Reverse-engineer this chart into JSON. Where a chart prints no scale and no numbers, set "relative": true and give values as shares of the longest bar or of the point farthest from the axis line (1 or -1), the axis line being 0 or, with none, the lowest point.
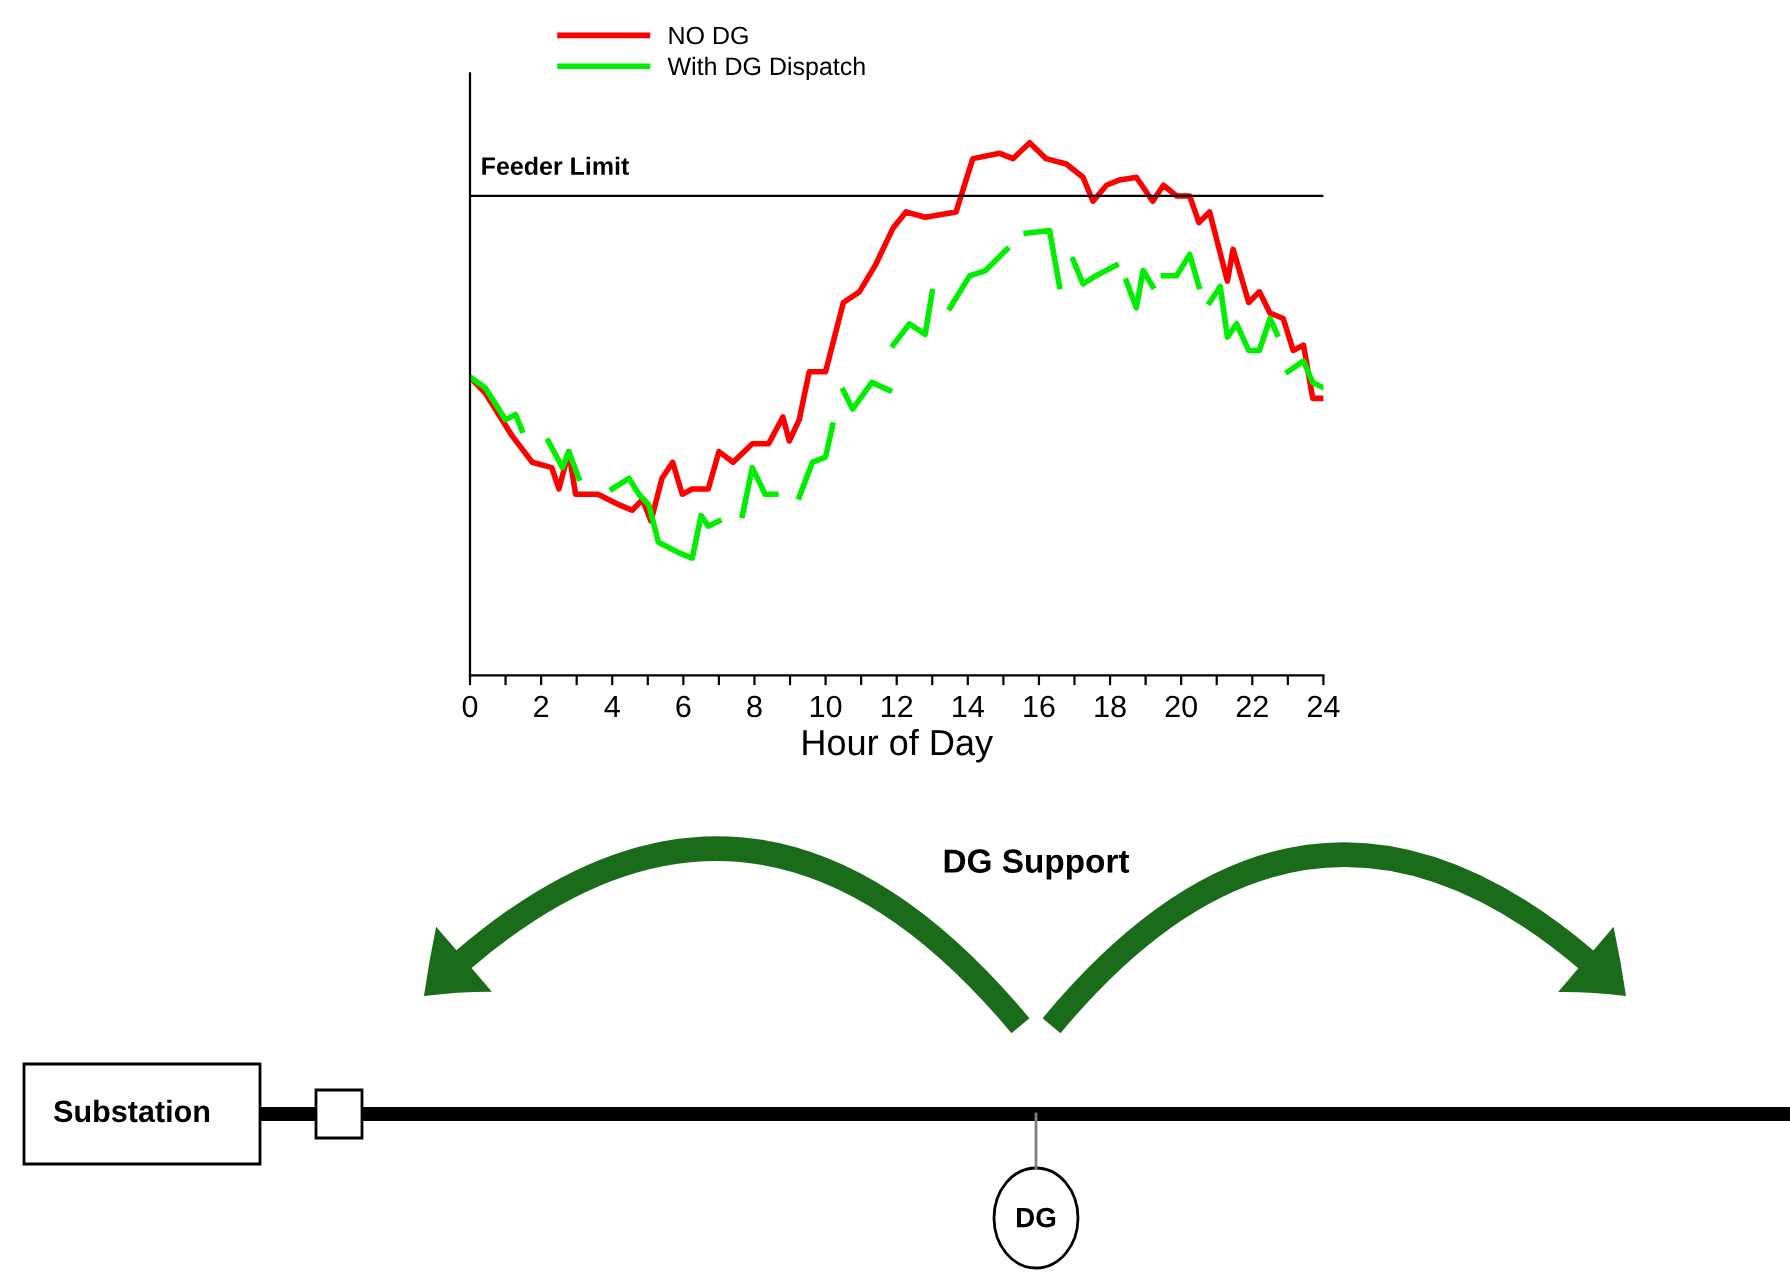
{
  "chart_data": {
    "type": "line",
    "relative": true,
    "xlabel": "Hour of Day",
    "xlim": [
      0,
      24
    ],
    "xticks": [
      0,
      {
        "value": 1,
        "label": null
      },
      2,
      {
        "value": 3,
        "label": null
      },
      4,
      {
        "value": 5,
        "label": null
      },
      6,
      {
        "value": 7,
        "label": null
      },
      8,
      {
        "value": 9,
        "label": null
      },
      10,
      {
        "value": 11,
        "label": null
      },
      12,
      {
        "value": 13,
        "label": null
      },
      14,
      {
        "value": 15,
        "label": null
      },
      16,
      {
        "value": 17,
        "label": null
      },
      18,
      {
        "value": 19,
        "label": null
      },
      20,
      {
        "value": 21,
        "label": null
      },
      22,
      {
        "value": 23,
        "label": null
      },
      24
    ],
    "tick_labels": "x",
    "grid": false,
    "legend": "top left",
    "marker": "none",
    "line_style": "solid",
    "series": [
      {
        "name": "NO DG",
        "color": "#ff0000",
        "x": [
          0,
          0.43,
          1.18,
          1.75,
          2.3,
          2.5,
          2.78,
          2.97,
          3.6,
          4.2,
          4.56,
          4.85,
          5.09,
          5.4,
          5.7,
          5.97,
          6.25,
          6.7,
          7.0,
          7.4,
          7.94,
          8.4,
          8.8,
          8.98,
          9.26,
          9.54,
          10.0,
          10.5,
          10.95,
          11.4,
          11.9,
          12.26,
          12.8,
          13.67,
          14.14,
          14.9,
          15.27,
          15.74,
          16.2,
          16.77,
          17.24,
          17.52,
          17.9,
          18.27,
          18.74,
          19.2,
          19.5,
          19.87,
          20.24,
          20.5,
          20.8,
          21.3,
          21.46,
          21.9,
          22.2,
          22.5,
          22.87,
          23.15,
          23.44,
          23.7,
          24
        ],
        "values": [
          0.56,
          0.53,
          0.45,
          0.4,
          0.39,
          0.35,
          0.42,
          0.34,
          0.34,
          0.32,
          0.31,
          0.33,
          0.29,
          0.37,
          0.4,
          0.34,
          0.35,
          0.35,
          0.42,
          0.4,
          0.435,
          0.435,
          0.485,
          0.44,
          0.48,
          0.57,
          0.57,
          0.7,
          0.72,
          0.77,
          0.84,
          0.87,
          0.86,
          0.87,
          0.97,
          0.98,
          0.97,
          1.0,
          0.97,
          0.96,
          0.935,
          0.89,
          0.92,
          0.93,
          0.935,
          0.89,
          0.92,
          0.9,
          0.9,
          0.85,
          0.87,
          0.74,
          0.8,
          0.7,
          0.72,
          0.68,
          0.67,
          0.61,
          0.62,
          0.52,
          0.52
        ]
      },
      {
        "name": "With DG Dispatch",
        "color": "#00ee00",
        "x": [
          0,
          0.43,
          1.0,
          1.28,
          1.46,
          1.8,
          2.2,
          2.6,
          2.78,
          3.06,
          3.5,
          4.0,
          4.47,
          4.75,
          5.03,
          5.3,
          5.88,
          6.25,
          6.5,
          6.7,
          7.0,
          7.3,
          7.66,
          7.94,
          8.3,
          8.6,
          8.9,
          9.26,
          9.63,
          10.0,
          10.2,
          10.35,
          10.5,
          10.76,
          11.3,
          11.8,
          11.85,
          11.9,
          12.36,
          12.8,
          13.0,
          13.25,
          13.5,
          14.05,
          14.5,
          15.1,
          15.4,
          15.64,
          16.3,
          16.58,
          16.8,
          16.96,
          17.24,
          17.6,
          18.17,
          18.3,
          18.46,
          18.74,
          18.93,
          19.2,
          19.35,
          19.5,
          19.87,
          20.24,
          20.5,
          20.65,
          20.8,
          21.1,
          21.3,
          21.56,
          21.9,
          22.2,
          22.5,
          22.7,
          22.85,
          23.0,
          23.44,
          23.7,
          24
        ],
        "values": [
          0.56,
          0.54,
          0.48,
          0.49,
          0.46,
          null,
          0.44,
          0.39,
          0.42,
          0.37,
          null,
          0.35,
          0.37,
          0.34,
          0.32,
          0.25,
          0.23,
          0.22,
          0.3,
          0.28,
          0.29,
          null,
          0.3,
          0.39,
          0.34,
          0.34,
          null,
          0.335,
          0.4,
          0.41,
          0.47,
          null,
          0.535,
          0.5,
          0.55,
          0.535,
          null,
          0.62,
          0.66,
          0.64,
          0.72,
          null,
          0.69,
          0.75,
          0.76,
          0.8,
          null,
          0.83,
          0.835,
          0.73,
          null,
          0.78,
          0.735,
          0.75,
          0.77,
          null,
          0.74,
          0.69,
          0.76,
          0.73,
          null,
          0.75,
          0.75,
          0.79,
          0.73,
          null,
          0.7,
          0.73,
          0.635,
          0.66,
          0.61,
          0.61,
          0.67,
          0.64,
          null,
          0.57,
          0.59,
          0.55,
          0.54
        ]
      }
    ],
    "ref_lines": [
      {
        "axis": "y",
        "value": 0.9,
        "label": "Feeder Limit",
        "color": "#000000",
        "line_style": "solid"
      }
    ],
    "annotations": [
      "DG Support",
      "Substation",
      "DG"
    ]
  }
}
